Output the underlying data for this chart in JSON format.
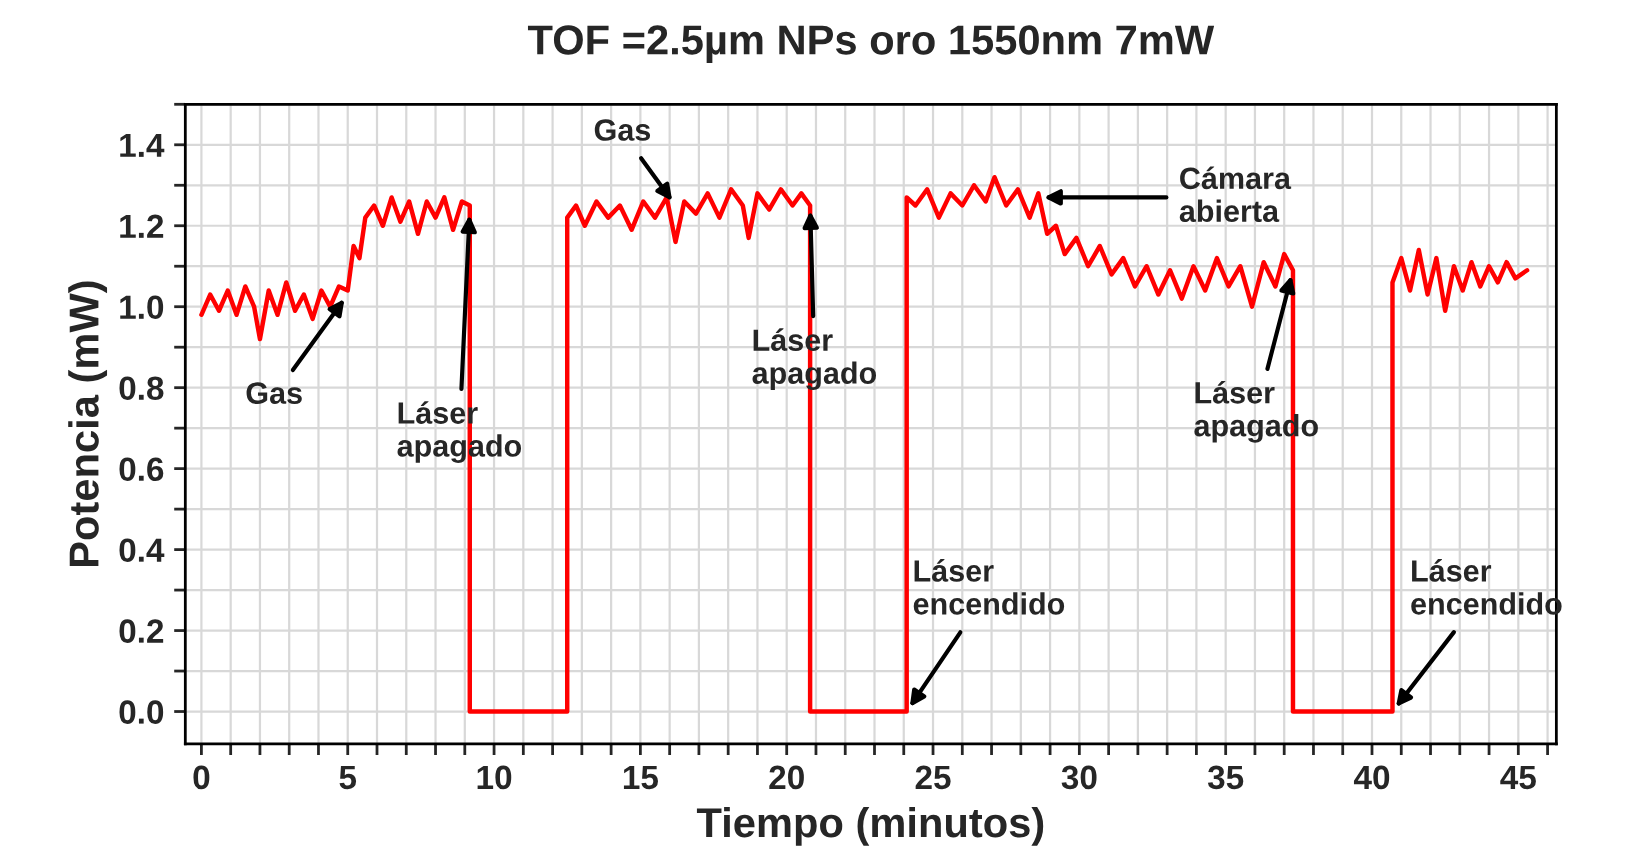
{
  "chart_data": {
    "type": "line",
    "title": "TOF =2.5µm NPs oro 1550nm 7mW",
    "xlabel": "Tiempo (minutos)",
    "ylabel": "Potencia (mW)",
    "series": [
      {
        "color": "#ff0000",
        "x": [
          0,
          0.3,
          0.6,
          0.9,
          1.2,
          1.5,
          1.8,
          2.0,
          2.3,
          2.6,
          2.9,
          3.2,
          3.5,
          3.8,
          4.1,
          4.4,
          4.7,
          5.0,
          5.2,
          5.4,
          5.6,
          5.9,
          6.2,
          6.5,
          6.8,
          7.1,
          7.4,
          7.7,
          8.0,
          8.3,
          8.6,
          8.9,
          9.17,
          9.17,
          12.5,
          12.5,
          12.8,
          13.1,
          13.5,
          13.9,
          14.3,
          14.7,
          15.1,
          15.5,
          15.9,
          16.2,
          16.5,
          16.9,
          17.3,
          17.7,
          18.1,
          18.5,
          18.7,
          19.0,
          19.4,
          19.8,
          20.2,
          20.5,
          20.8,
          20.8,
          24.1,
          24.1,
          24.4,
          24.8,
          25.2,
          25.6,
          26.0,
          26.4,
          26.8,
          27.1,
          27.5,
          27.9,
          28.3,
          28.6,
          28.9,
          29.2,
          29.5,
          29.9,
          30.3,
          30.7,
          31.1,
          31.5,
          31.9,
          32.3,
          32.7,
          33.1,
          33.5,
          33.9,
          34.3,
          34.7,
          35.1,
          35.5,
          35.9,
          36.3,
          36.7,
          37.0,
          37.3,
          37.3,
          40.7,
          40.7,
          41.0,
          41.3,
          41.6,
          41.9,
          42.2,
          42.5,
          42.8,
          43.1,
          43.4,
          43.7,
          44.0,
          44.3,
          44.6,
          44.9,
          45.3
        ],
        "values": [
          0.98,
          1.03,
          0.99,
          1.04,
          0.98,
          1.05,
          1.0,
          0.92,
          1.04,
          0.98,
          1.06,
          0.99,
          1.03,
          0.97,
          1.04,
          1.0,
          1.05,
          1.04,
          1.15,
          1.12,
          1.22,
          1.25,
          1.2,
          1.27,
          1.21,
          1.26,
          1.18,
          1.26,
          1.22,
          1.27,
          1.19,
          1.26,
          1.25,
          0,
          0,
          1.22,
          1.25,
          1.2,
          1.26,
          1.22,
          1.25,
          1.19,
          1.26,
          1.22,
          1.27,
          1.16,
          1.26,
          1.23,
          1.28,
          1.22,
          1.29,
          1.25,
          1.17,
          1.28,
          1.24,
          1.29,
          1.25,
          1.28,
          1.25,
          0,
          0,
          1.27,
          1.25,
          1.29,
          1.22,
          1.28,
          1.25,
          1.3,
          1.26,
          1.32,
          1.25,
          1.29,
          1.22,
          1.28,
          1.18,
          1.2,
          1.13,
          1.17,
          1.1,
          1.15,
          1.08,
          1.12,
          1.05,
          1.1,
          1.03,
          1.09,
          1.02,
          1.1,
          1.04,
          1.12,
          1.05,
          1.1,
          1.0,
          1.11,
          1.05,
          1.13,
          1.09,
          0,
          0,
          1.06,
          1.12,
          1.04,
          1.14,
          1.03,
          1.12,
          0.99,
          1.1,
          1.04,
          1.11,
          1.05,
          1.1,
          1.06,
          1.11,
          1.07,
          1.09
        ]
      }
    ],
    "xlim": [
      -0.55,
      46.3
    ],
    "ylim": [
      -0.08,
      1.5
    ],
    "xticks": [
      0,
      {
        "value": 1,
        "label": null
      },
      {
        "value": 2,
        "label": null
      },
      {
        "value": 3,
        "label": null
      },
      {
        "value": 4,
        "label": null
      },
      5,
      {
        "value": 6,
        "label": null
      },
      {
        "value": 7,
        "label": null
      },
      {
        "value": 8,
        "label": null
      },
      {
        "value": 9,
        "label": null
      },
      10,
      {
        "value": 11,
        "label": null
      },
      {
        "value": 12,
        "label": null
      },
      {
        "value": 13,
        "label": null
      },
      {
        "value": 14,
        "label": null
      },
      15,
      {
        "value": 16,
        "label": null
      },
      {
        "value": 17,
        "label": null
      },
      {
        "value": 18,
        "label": null
      },
      {
        "value": 19,
        "label": null
      },
      20,
      {
        "value": 21,
        "label": null
      },
      {
        "value": 22,
        "label": null
      },
      {
        "value": 23,
        "label": null
      },
      {
        "value": 24,
        "label": null
      },
      25,
      {
        "value": 26,
        "label": null
      },
      {
        "value": 27,
        "label": null
      },
      {
        "value": 28,
        "label": null
      },
      {
        "value": 29,
        "label": null
      },
      30,
      {
        "value": 31,
        "label": null
      },
      {
        "value": 32,
        "label": null
      },
      {
        "value": 33,
        "label": null
      },
      {
        "value": 34,
        "label": null
      },
      35,
      {
        "value": 36,
        "label": null
      },
      {
        "value": 37,
        "label": null
      },
      {
        "value": 38,
        "label": null
      },
      {
        "value": 39,
        "label": null
      },
      40,
      {
        "value": 41,
        "label": null
      },
      {
        "value": 42,
        "label": null
      },
      {
        "value": 43,
        "label": null
      },
      {
        "value": 44,
        "label": null
      },
      45,
      {
        "value": 46,
        "label": null
      }
    ],
    "yticks": [
      {
        "value": 0,
        "label": "0.0"
      },
      {
        "value": 0.1,
        "label": null
      },
      {
        "value": 0.2,
        "label": "0.2"
      },
      {
        "value": 0.3,
        "label": null
      },
      {
        "value": 0.4,
        "label": "0.4"
      },
      {
        "value": 0.5,
        "label": null
      },
      {
        "value": 0.6,
        "label": "0.6"
      },
      {
        "value": 0.7,
        "label": null
      },
      {
        "value": 0.8,
        "label": "0.8"
      },
      {
        "value": 0.9,
        "label": null
      },
      {
        "value": 1.0,
        "label": "1.0"
      },
      {
        "value": 1.1,
        "label": null
      },
      {
        "value": 1.2,
        "label": "1.2"
      },
      {
        "value": 1.3,
        "label": null
      },
      {
        "value": 1.4,
        "label": "1.4"
      },
      {
        "value": 1.5,
        "label": null
      }
    ],
    "grid": true,
    "legend": false,
    "marker": "none",
    "line_style": "solid",
    "annotations": [
      {
        "text": "Gas",
        "x": 5.0,
        "y": 1.03
      },
      {
        "text": "Láser\napagado",
        "x": 9.17,
        "y": 1.24
      },
      {
        "text": "Gas",
        "x": 16.2,
        "y": 1.25
      },
      {
        "text": "Láser\napagado",
        "x": 20.8,
        "y": 1.25
      },
      {
        "text": "Cámara\nabierta",
        "x": 28.6,
        "y": 1.27
      },
      {
        "text": "Láser\napagado",
        "x": 37.3,
        "y": 1.09
      },
      {
        "text": "Láser\nencendido",
        "x": 24.1,
        "y": 0
      },
      {
        "text": "Láser\nencendido",
        "x": 40.7,
        "y": 0
      }
    ]
  }
}
